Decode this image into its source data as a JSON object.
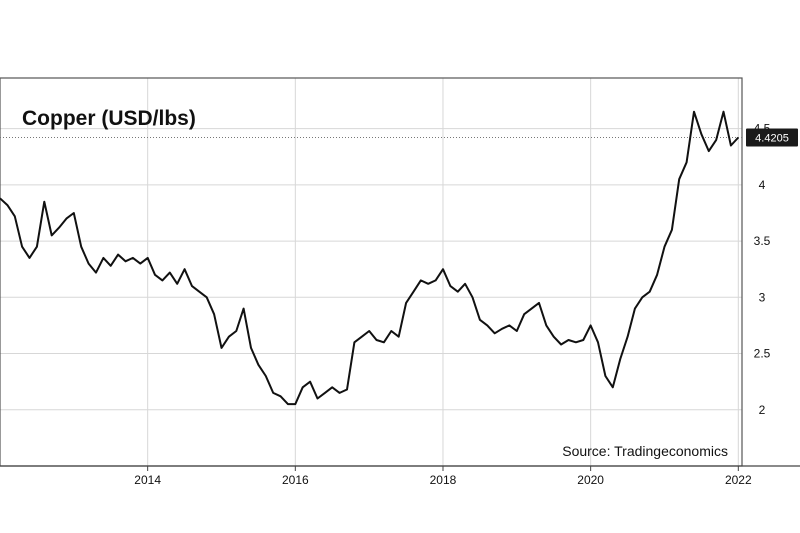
{
  "chart_data": {
    "type": "line",
    "title": "Copper (USD/lbs)",
    "source": "Source: Tradingeconomics",
    "x_ticks": [
      "2014",
      "2016",
      "2018",
      "2020",
      "2022"
    ],
    "y_ticks": [
      "2",
      "2.5",
      "3",
      "3.5",
      "4",
      "4.5"
    ],
    "xlim": [
      2012.0,
      2022.05
    ],
    "ylim": [
      1.5,
      4.95
    ],
    "grid": true,
    "last_value_label": "4.4205",
    "series": [
      {
        "x": [
          2012.0,
          2012.1,
          2012.2,
          2012.3,
          2012.4,
          2012.5,
          2012.6,
          2012.7,
          2012.8,
          2012.9,
          2013.0,
          2013.1,
          2013.2,
          2013.3,
          2013.4,
          2013.5,
          2013.6,
          2013.7,
          2013.8,
          2013.9,
          2014.0,
          2014.1,
          2014.2,
          2014.3,
          2014.4,
          2014.5,
          2014.6,
          2014.7,
          2014.8,
          2014.9,
          2015.0,
          2015.1,
          2015.2,
          2015.3,
          2015.4,
          2015.5,
          2015.6,
          2015.7,
          2015.8,
          2015.9,
          2016.0,
          2016.1,
          2016.2,
          2016.3,
          2016.4,
          2016.5,
          2016.6,
          2016.7,
          2016.8,
          2016.9,
          2017.0,
          2017.1,
          2017.2,
          2017.3,
          2017.4,
          2017.5,
          2017.6,
          2017.7,
          2017.8,
          2017.9,
          2018.0,
          2018.1,
          2018.2,
          2018.3,
          2018.4,
          2018.5,
          2018.6,
          2018.7,
          2018.8,
          2018.9,
          2019.0,
          2019.1,
          2019.2,
          2019.3,
          2019.4,
          2019.5,
          2019.6,
          2019.7,
          2019.8,
          2019.9,
          2020.0,
          2020.1,
          2020.2,
          2020.3,
          2020.4,
          2020.5,
          2020.6,
          2020.7,
          2020.8,
          2020.9,
          2021.0,
          2021.1,
          2021.2,
          2021.3,
          2021.4,
          2021.5,
          2021.6,
          2021.7,
          2021.8,
          2021.9,
          2022.0
        ],
        "values": [
          3.88,
          3.82,
          3.72,
          3.45,
          3.35,
          3.45,
          3.85,
          3.55,
          3.62,
          3.7,
          3.75,
          3.45,
          3.3,
          3.22,
          3.35,
          3.28,
          3.38,
          3.32,
          3.35,
          3.3,
          3.35,
          3.2,
          3.15,
          3.22,
          3.12,
          3.25,
          3.1,
          3.05,
          3.0,
          2.85,
          2.55,
          2.65,
          2.7,
          2.9,
          2.55,
          2.4,
          2.3,
          2.15,
          2.12,
          2.05,
          2.05,
          2.2,
          2.25,
          2.1,
          2.15,
          2.2,
          2.15,
          2.18,
          2.6,
          2.65,
          2.7,
          2.62,
          2.6,
          2.7,
          2.65,
          2.95,
          3.05,
          3.15,
          3.12,
          3.15,
          3.25,
          3.1,
          3.05,
          3.12,
          3.0,
          2.8,
          2.75,
          2.68,
          2.72,
          2.75,
          2.7,
          2.85,
          2.9,
          2.95,
          2.75,
          2.65,
          2.58,
          2.62,
          2.6,
          2.62,
          2.75,
          2.6,
          2.3,
          2.2,
          2.45,
          2.65,
          2.9,
          3.0,
          3.05,
          3.2,
          3.45,
          3.6,
          4.05,
          4.2,
          4.65,
          4.45,
          4.3,
          4.4,
          4.65,
          4.35,
          4.4205
        ]
      }
    ]
  }
}
